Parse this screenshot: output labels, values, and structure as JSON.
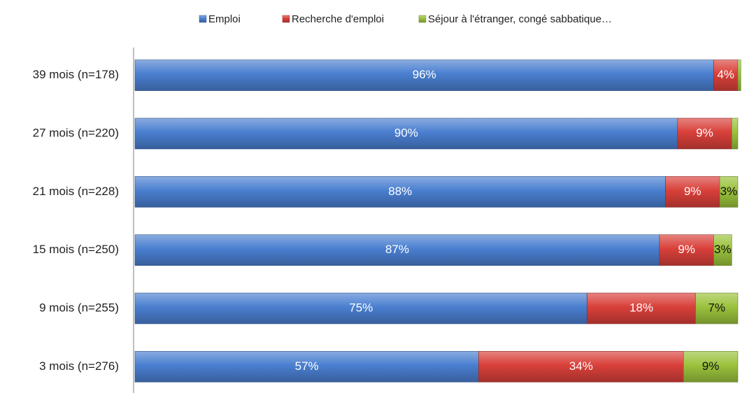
{
  "chart_data": {
    "type": "stacked-bar-horizontal",
    "categories": [
      "39 mois (n=178)",
      "27 mois (n=220)",
      "21 mois (n=228)",
      "15 mois (n=250)",
      "9 mois (n=255)",
      "3 mois (n=276)"
    ],
    "series": [
      {
        "name": "Emploi",
        "color": "#4a7fd0",
        "values": [
          96,
          90,
          88,
          87,
          75,
          57
        ],
        "value_labels": [
          "96%",
          "90%",
          "88%",
          "87%",
          "75%",
          "57%"
        ]
      },
      {
        "name": "Recherche d'emploi",
        "color": "#d9403a",
        "values": [
          4,
          9,
          9,
          9,
          18,
          34
        ],
        "value_labels": [
          "4%",
          "9%",
          "9%",
          "9%",
          "18%",
          "34%"
        ]
      },
      {
        "name": "Séjour à l'étranger, congé sabbatique…",
        "color": "#9bc23c",
        "values": [
          0.5,
          1,
          3,
          3,
          7,
          9
        ],
        "value_labels": [
          null,
          null,
          "3%",
          "3%",
          "7%",
          "9%"
        ]
      }
    ],
    "xlim": [
      0,
      100
    ],
    "legend": "top"
  }
}
